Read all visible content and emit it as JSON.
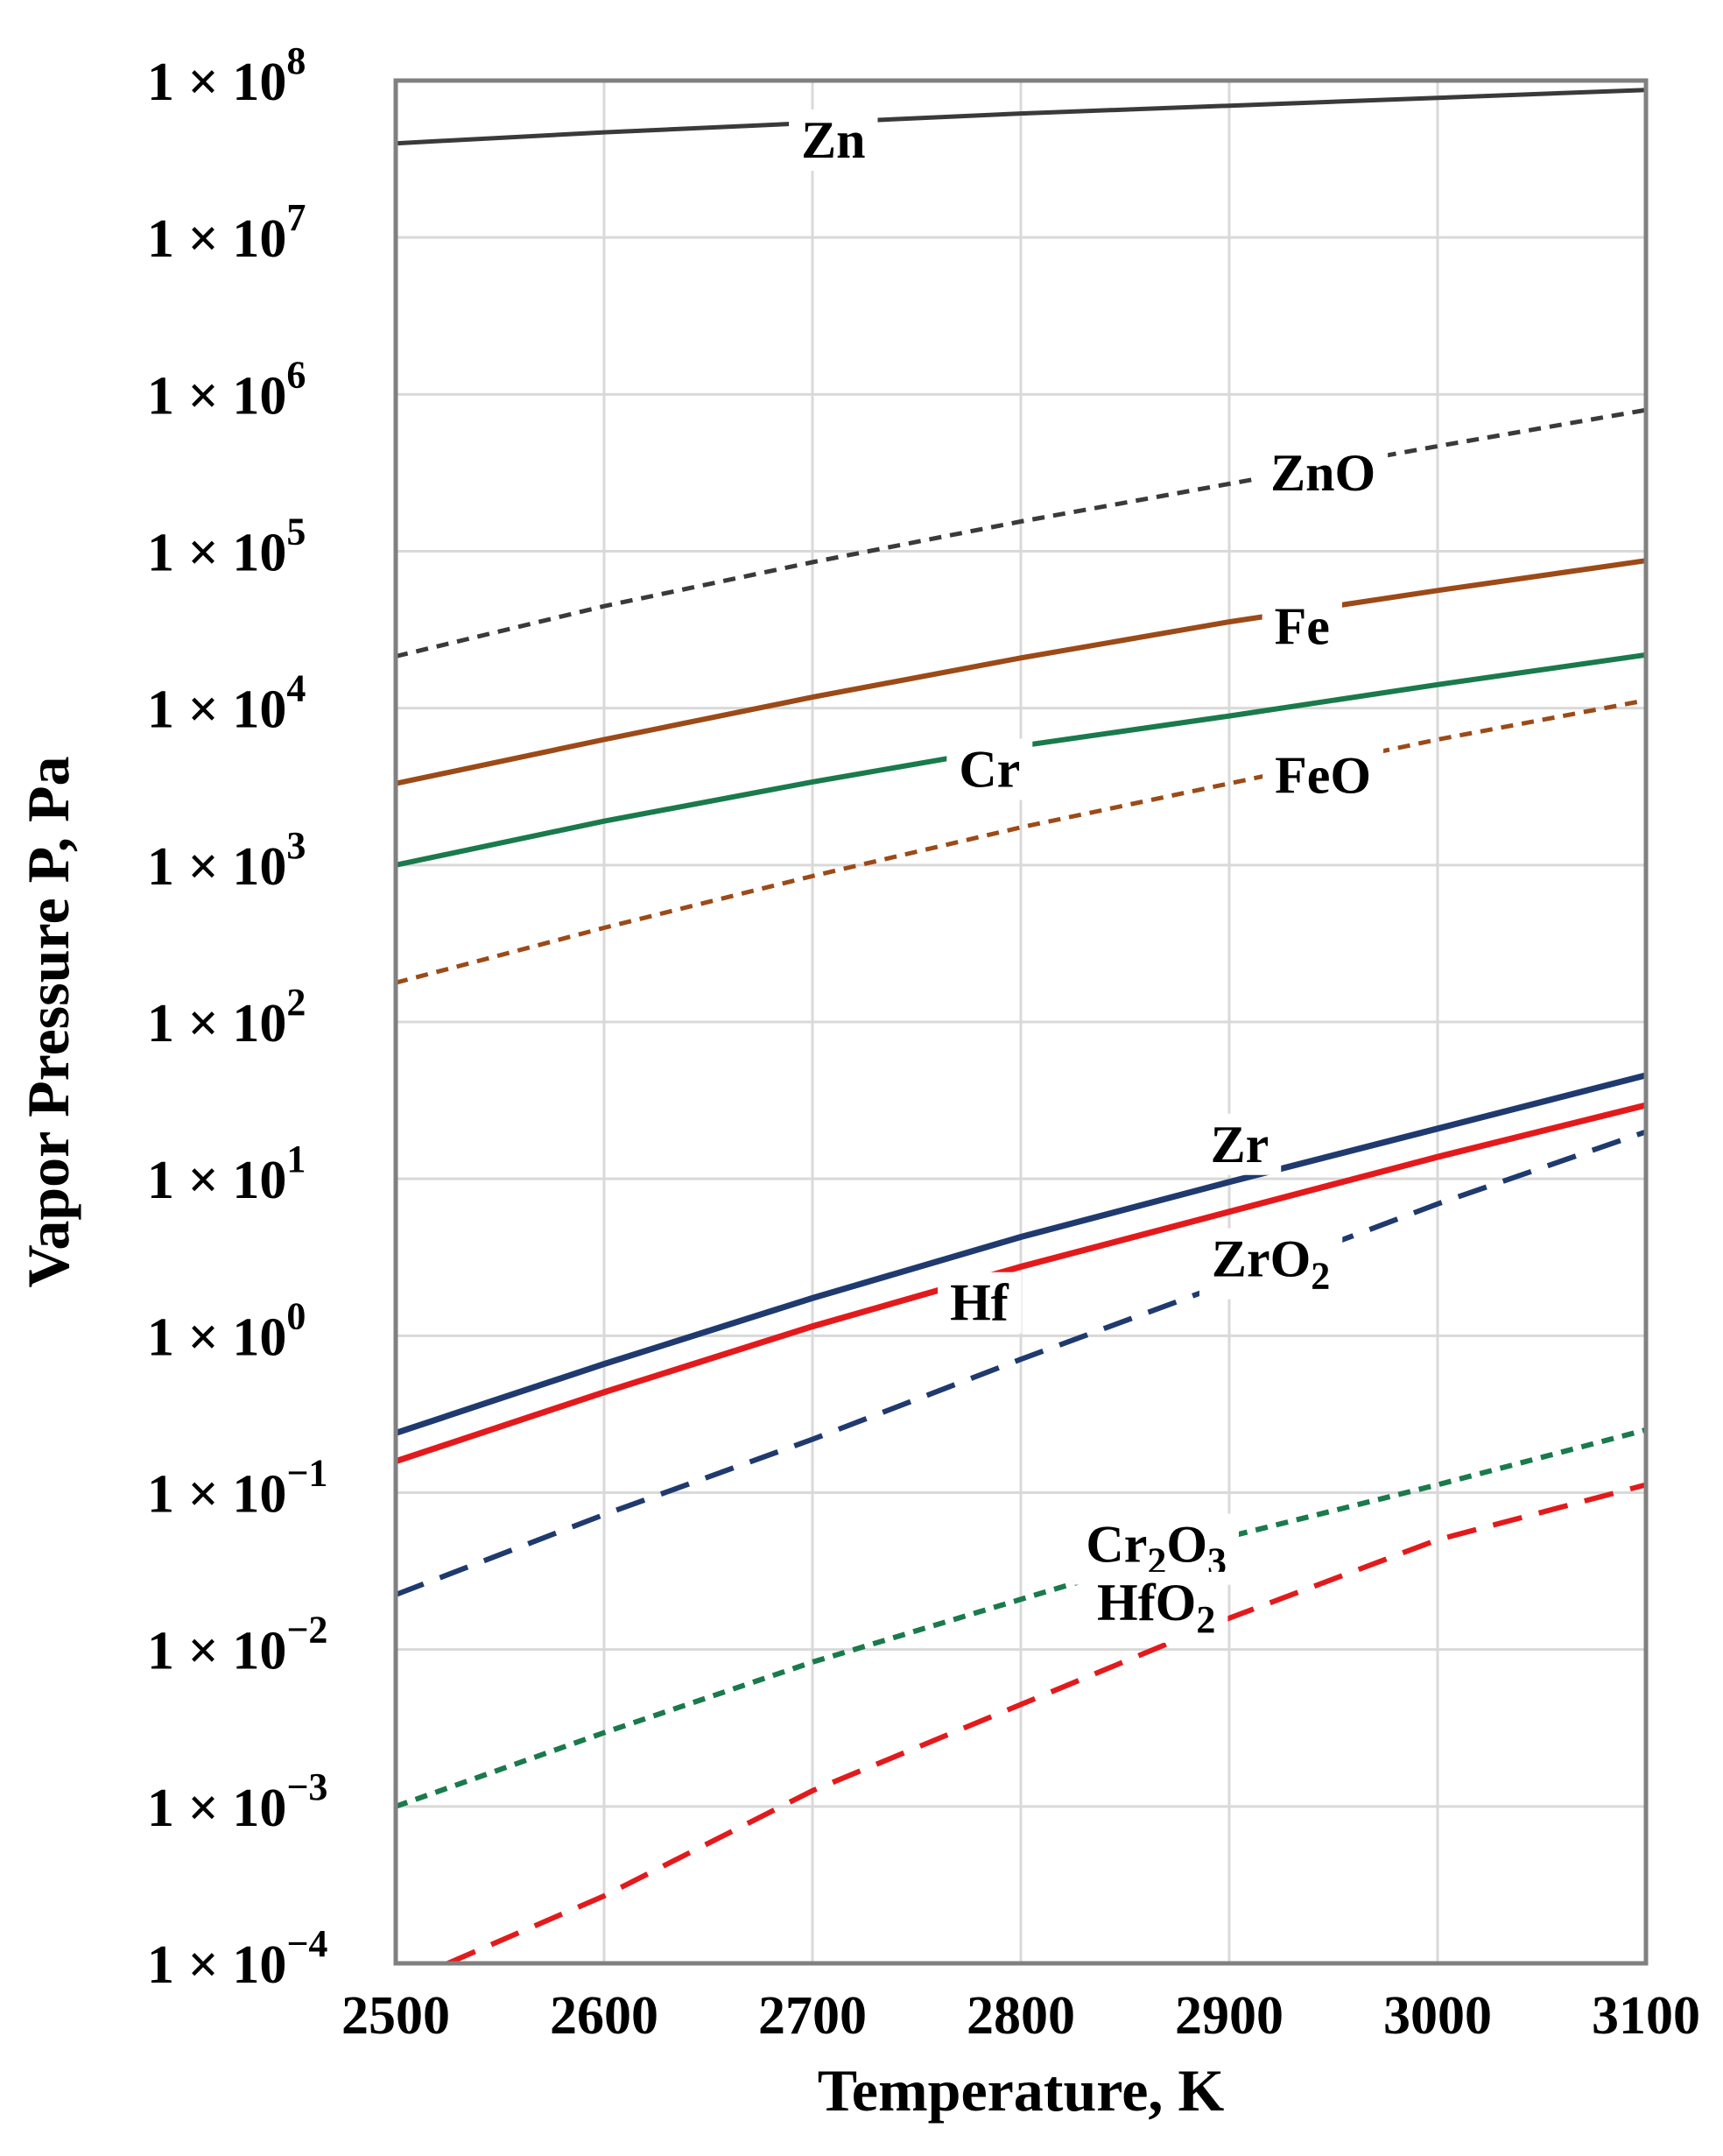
{
  "chart_data": {
    "type": "line",
    "title": "",
    "xlabel": "Temperature, K",
    "ylabel": "Vapor Pressure P, Pa",
    "xlim": [
      2500,
      3100
    ],
    "ylim_log10": [
      -4,
      8
    ],
    "y_scale": "log",
    "grid": true,
    "x_ticks": [
      2500,
      2600,
      2700,
      2800,
      2900,
      3000,
      3100
    ],
    "x_tick_labels": [
      "2500",
      "2600",
      "2700",
      "2800",
      "2900",
      "3000",
      "3100"
    ],
    "y_ticks": [
      {
        "exp": 8,
        "mantissa": "1 × 10",
        "sup": "8"
      },
      {
        "exp": 7,
        "mantissa": "1 × 10",
        "sup": "7"
      },
      {
        "exp": 6,
        "mantissa": "1 × 10",
        "sup": "6"
      },
      {
        "exp": 5,
        "mantissa": "1 × 10",
        "sup": "5"
      },
      {
        "exp": 4,
        "mantissa": "1 × 10",
        "sup": "4"
      },
      {
        "exp": 3,
        "mantissa": "1 × 10",
        "sup": "3"
      },
      {
        "exp": 2,
        "mantissa": "1 × 10",
        "sup": "2"
      },
      {
        "exp": 1,
        "mantissa": "1 × 10",
        "sup": "1"
      },
      {
        "exp": 0,
        "mantissa": "1 × 10",
        "sup": "0"
      },
      {
        "exp": -1,
        "mantissa": "1 × 10",
        "sup": "−1"
      },
      {
        "exp": -2,
        "mantissa": "1 × 10",
        "sup": "−2"
      },
      {
        "exp": -3,
        "mantissa": "1 × 10",
        "sup": "−3"
      },
      {
        "exp": -4,
        "mantissa": "1 × 10",
        "sup": "−4"
      }
    ],
    "series": [
      {
        "name": "Zn",
        "label": "Zn",
        "sub": "",
        "label_rest": "",
        "color": "#3a3a3a",
        "dash": "solid",
        "width": 5,
        "x": [
          2500,
          2600,
          2700,
          2800,
          2900,
          3000,
          3100
        ],
        "log10_p": [
          7.6,
          7.67,
          7.73,
          7.79,
          7.84,
          7.89,
          7.94
        ],
        "label_at": {
          "x": 2710,
          "log10_p": 7.62
        }
      },
      {
        "name": "ZnO",
        "label": "ZnO",
        "sub": "",
        "label_rest": "",
        "color": "#3a3a3a",
        "dash": "short",
        "width": 5,
        "x": [
          2500,
          2600,
          2700,
          2800,
          2900,
          3000,
          3100
        ],
        "log10_p": [
          4.33,
          4.65,
          4.93,
          5.19,
          5.43,
          5.67,
          5.9
        ],
        "label_at": {
          "x": 2945,
          "log10_p": 5.5
        }
      },
      {
        "name": "Fe",
        "label": "Fe",
        "sub": "",
        "label_rest": "",
        "color": "#9c4a18",
        "dash": "solid",
        "width": 6,
        "x": [
          2500,
          2600,
          2700,
          2800,
          2900,
          3000,
          3100
        ],
        "log10_p": [
          3.52,
          3.8,
          4.07,
          4.32,
          4.55,
          4.75,
          4.94
        ],
        "label_at": {
          "x": 2935,
          "log10_p": 4.52
        }
      },
      {
        "name": "Cr",
        "label": "Cr",
        "sub": "",
        "label_rest": "",
        "color": "#1a7a4c",
        "dash": "solid",
        "width": 6,
        "x": [
          2500,
          2600,
          2700,
          2800,
          2900,
          3000,
          3100
        ],
        "log10_p": [
          3.0,
          3.28,
          3.53,
          3.76,
          3.95,
          4.15,
          4.34
        ],
        "label_at": {
          "x": 2785,
          "log10_p": 3.61
        }
      },
      {
        "name": "FeO",
        "label": "FeO",
        "sub": "",
        "label_rest": "",
        "color": "#9c4a18",
        "dash": "short",
        "width": 5,
        "x": [
          2500,
          2600,
          2700,
          2800,
          2900,
          3000,
          3100
        ],
        "log10_p": [
          2.25,
          2.6,
          2.93,
          3.24,
          3.52,
          3.8,
          4.05
        ],
        "label_at": {
          "x": 2945,
          "log10_p": 3.57
        }
      },
      {
        "name": "Zr",
        "label": "Zr",
        "sub": "",
        "label_rest": "",
        "color": "#1f3a6e",
        "dash": "solid",
        "width": 7,
        "x": [
          2500,
          2600,
          2700,
          2800,
          2900,
          3000,
          3100
        ],
        "log10_p": [
          -0.62,
          -0.18,
          0.24,
          0.63,
          0.98,
          1.32,
          1.66
        ],
        "label_at": {
          "x": 2905,
          "log10_p": 1.22
        }
      },
      {
        "name": "Hf",
        "label": "Hf",
        "sub": "",
        "label_rest": "",
        "color": "#e31a1c",
        "dash": "solid",
        "width": 7,
        "x": [
          2500,
          2600,
          2700,
          2800,
          2900,
          3000,
          3100
        ],
        "log10_p": [
          -0.8,
          -0.36,
          0.06,
          0.44,
          0.79,
          1.14,
          1.47
        ],
        "label_at": {
          "x": 2780,
          "log10_p": 0.21
        }
      },
      {
        "name": "ZrO2",
        "label": "ZrO",
        "sub": "2",
        "label_rest": "",
        "color": "#1f3a6e",
        "dash": "long",
        "width": 6,
        "x": [
          2500,
          2600,
          2700,
          2800,
          2900,
          3000,
          3100
        ],
        "log10_p": [
          -1.65,
          -1.14,
          -0.66,
          -0.15,
          0.34,
          0.84,
          1.3
        ],
        "label_at": {
          "x": 2920,
          "log10_p": 0.49
        }
      },
      {
        "name": "Cr2O3",
        "label": "Cr",
        "sub": "2",
        "label_rest": "O",
        "sub2": "3",
        "color": "#1a7a4c",
        "dash": "short",
        "width": 6,
        "x": [
          2500,
          2600,
          2700,
          2800,
          2900,
          3000,
          3100
        ],
        "log10_p": [
          -3.0,
          -2.53,
          -2.08,
          -1.68,
          -1.28,
          -0.95,
          -0.6
        ],
        "label_at": {
          "x": 2865,
          "log10_p": -1.33
        }
      },
      {
        "name": "HfO2",
        "label": "HfO",
        "sub": "2",
        "label_rest": "",
        "color": "#e31a1c",
        "dash": "long",
        "width": 6,
        "x": [
          2525,
          2600,
          2700,
          2800,
          2900,
          3000,
          3100
        ],
        "log10_p": [
          -4.0,
          -3.57,
          -2.9,
          -2.35,
          -1.8,
          -1.3,
          -0.95
        ],
        "label_at": {
          "x": 2865,
          "log10_p": -1.7
        }
      }
    ]
  }
}
